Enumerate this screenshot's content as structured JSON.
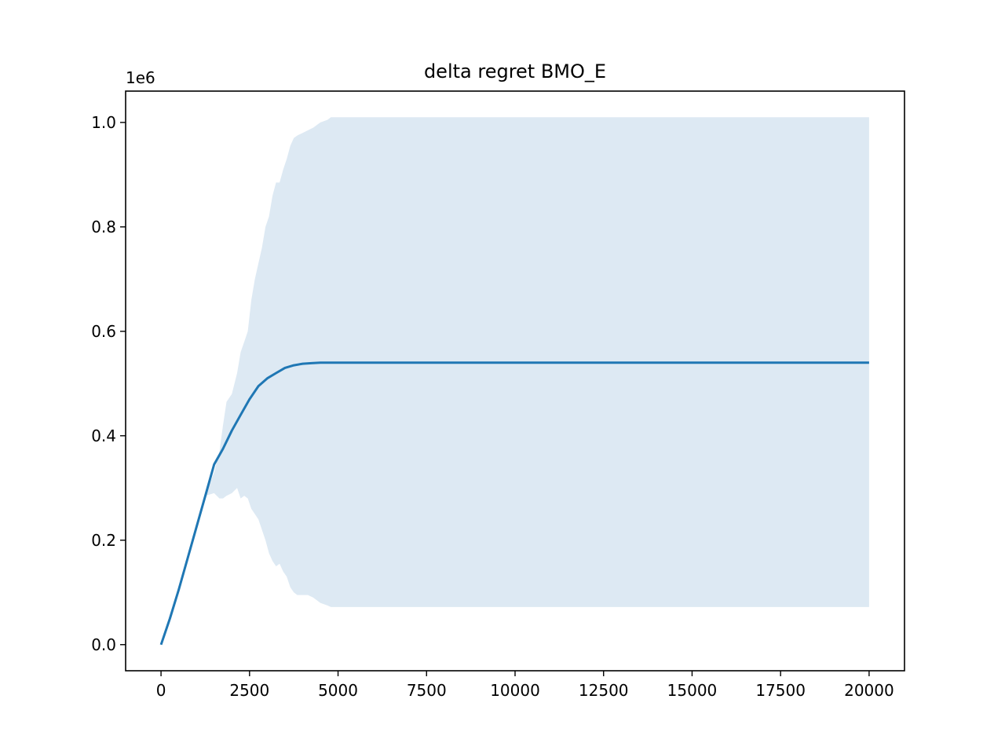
{
  "chart_data": {
    "type": "area",
    "title": "delta regret BMO_E",
    "xlabel": "",
    "ylabel": "",
    "y_offset_label": "1e6",
    "xlim": [
      -1000,
      21000
    ],
    "ylim": [
      -0.05,
      1.06
    ],
    "x_ticks": [
      0,
      2500,
      5000,
      7500,
      10000,
      12500,
      15000,
      17500,
      20000
    ],
    "x_tick_labels": [
      "0",
      "2500",
      "5000",
      "7500",
      "10000",
      "12500",
      "15000",
      "17500",
      "20000"
    ],
    "y_ticks": [
      0.0,
      0.2,
      0.4,
      0.6,
      0.8,
      1.0
    ],
    "y_tick_labels": [
      "0.0",
      "0.2",
      "0.4",
      "0.6",
      "0.8",
      "1.0"
    ],
    "grid": false,
    "colors": {
      "line": "#1f77b4",
      "band": "#dde9f3",
      "axes": "#000000"
    },
    "series": [
      {
        "type": "line",
        "x": [
          0,
          250,
          500,
          750,
          1000,
          1250,
          1500,
          1750,
          2000,
          2250,
          2500,
          2750,
          3000,
          3250,
          3500,
          3750,
          4000,
          4250,
          4500,
          4750,
          5000,
          6000,
          8000,
          10000,
          12500,
          15000,
          17500,
          20000
        ],
        "y": [
          0.0,
          0.05,
          0.105,
          0.165,
          0.225,
          0.285,
          0.345,
          0.375,
          0.41,
          0.44,
          0.47,
          0.495,
          0.51,
          0.52,
          0.53,
          0.535,
          0.538,
          0.539,
          0.54,
          0.54,
          0.54,
          0.54,
          0.54,
          0.54,
          0.54,
          0.54,
          0.54,
          0.54
        ]
      },
      {
        "type": "band",
        "x": [
          0,
          250,
          500,
          750,
          1000,
          1250,
          1500,
          1650,
          1750,
          1850,
          2000,
          2150,
          2250,
          2350,
          2450,
          2550,
          2650,
          2750,
          2850,
          2950,
          3050,
          3150,
          3250,
          3350,
          3450,
          3550,
          3650,
          3750,
          3850,
          4000,
          4150,
          4300,
          4500,
          4700,
          4800,
          5000,
          6000,
          8000,
          10000,
          12500,
          15000,
          17500,
          20000
        ],
        "upper": [
          0.0,
          0.05,
          0.105,
          0.165,
          0.225,
          0.285,
          0.33,
          0.37,
          0.42,
          0.465,
          0.48,
          0.52,
          0.56,
          0.58,
          0.6,
          0.66,
          0.7,
          0.73,
          0.76,
          0.8,
          0.82,
          0.86,
          0.885,
          0.885,
          0.91,
          0.93,
          0.955,
          0.97,
          0.975,
          0.98,
          0.985,
          0.99,
          1.0,
          1.005,
          1.01,
          1.01,
          1.01,
          1.01,
          1.01,
          1.01,
          1.01,
          1.01,
          1.01
        ],
        "lower": [
          0.0,
          0.05,
          0.105,
          0.165,
          0.225,
          0.285,
          0.29,
          0.28,
          0.28,
          0.285,
          0.29,
          0.3,
          0.28,
          0.285,
          0.28,
          0.26,
          0.25,
          0.24,
          0.22,
          0.2,
          0.175,
          0.16,
          0.15,
          0.155,
          0.14,
          0.13,
          0.11,
          0.1,
          0.095,
          0.095,
          0.095,
          0.09,
          0.08,
          0.075,
          0.072,
          0.072,
          0.072,
          0.072,
          0.072,
          0.072,
          0.072,
          0.072,
          0.072
        ]
      }
    ]
  }
}
